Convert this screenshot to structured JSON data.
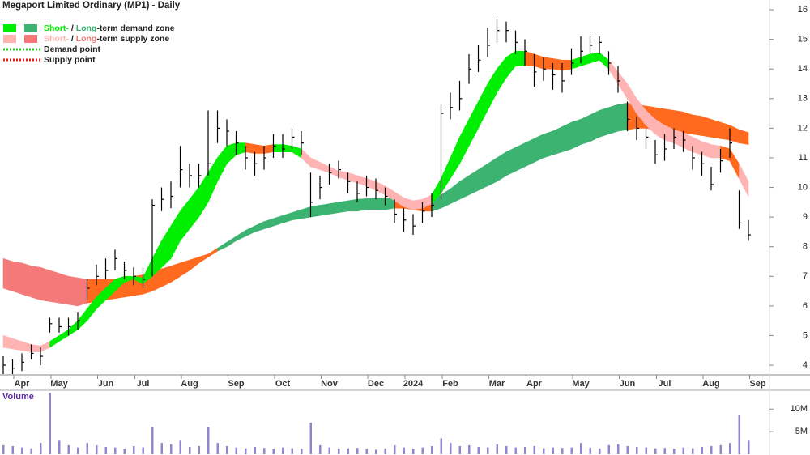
{
  "chart_data": {
    "type": "ohlc",
    "title": "Megaport Limited Ordinary (MP1) - Daily",
    "categories": [
      null,
      null,
      "Apr",
      null,
      null,
      null,
      "May",
      null,
      null,
      null,
      null,
      "Jun",
      null,
      null,
      null,
      "Jul",
      null,
      null,
      null,
      null,
      "Aug",
      null,
      null,
      null,
      null,
      "Sep",
      null,
      null,
      null,
      null,
      "Oct",
      null,
      null,
      null,
      null,
      "Nov",
      null,
      null,
      null,
      null,
      "Dec",
      null,
      null,
      null,
      "2024",
      null,
      null,
      null,
      "Feb",
      null,
      null,
      null,
      null,
      "Mar",
      null,
      null,
      null,
      "Apr",
      null,
      null,
      null,
      null,
      "May",
      null,
      null,
      null,
      null,
      "Jun",
      null,
      null,
      null,
      "Jul",
      null,
      null,
      null,
      null,
      "Aug",
      null,
      null,
      null,
      null,
      "Sep"
    ],
    "close": [
      4.0,
      3.9,
      4.1,
      4.4,
      4.3,
      5.4,
      5.3,
      5.3,
      5.5,
      6.6,
      7.0,
      7.2,
      7.6,
      7.2,
      7.0,
      6.9,
      9.4,
      9.6,
      9.7,
      10.6,
      10.4,
      10.4,
      10.8,
      12.0,
      11.9,
      11.5,
      11.0,
      10.8,
      11.0,
      11.4,
      11.3,
      11.7,
      11.5,
      9.5,
      10.0,
      10.5,
      10.6,
      10.2,
      9.8,
      10.0,
      9.9,
      9.7,
      9.1,
      8.9,
      8.7,
      9.2,
      9.4,
      12.5,
      12.7,
      13.0,
      14.0,
      14.3,
      14.8,
      15.3,
      15.3,
      14.9,
      14.6,
      13.9,
      14.0,
      13.8,
      13.6,
      14.2,
      14.6,
      14.8,
      14.9,
      14.2,
      13.6,
      12.3,
      12.0,
      11.7,
      11.1,
      11.3,
      11.7,
      11.6,
      11.0,
      10.8,
      10.1,
      10.9,
      11.5,
      8.8,
      8.4,
      null
    ],
    "high": [
      4.3,
      4.2,
      4.4,
      4.7,
      4.6,
      5.6,
      5.6,
      5.6,
      5.8,
      6.9,
      7.4,
      7.6,
      7.9,
      7.5,
      7.3,
      7.3,
      9.6,
      10.0,
      10.2,
      11.4,
      10.8,
      10.8,
      12.6,
      12.6,
      12.3,
      11.9,
      11.4,
      11.2,
      11.4,
      11.8,
      11.8,
      12.0,
      11.9,
      10.5,
      10.4,
      10.8,
      10.9,
      10.5,
      10.2,
      10.4,
      10.3,
      10.0,
      9.6,
      9.3,
      9.1,
      9.5,
      9.8,
      12.8,
      13.2,
      13.6,
      14.5,
      14.8,
      15.4,
      15.7,
      15.6,
      15.3,
      15.0,
      14.5,
      14.4,
      14.2,
      14.2,
      14.7,
      15.1,
      15.1,
      15.1,
      14.6,
      14.1,
      12.9,
      12.4,
      12.0,
      11.6,
      11.8,
      12.0,
      11.9,
      11.4,
      11.2,
      10.7,
      11.3,
      12.0,
      9.9,
      8.9,
      null
    ],
    "low": [
      3.7,
      3.7,
      3.8,
      4.2,
      4.0,
      5.1,
      5.1,
      5.0,
      5.2,
      6.2,
      6.7,
      6.9,
      7.2,
      6.9,
      6.7,
      6.6,
      7.0,
      9.2,
      9.3,
      10.0,
      10.0,
      10.0,
      10.4,
      11.5,
      11.4,
      11.1,
      10.6,
      10.4,
      10.6,
      11.0,
      11.0,
      11.3,
      11.1,
      9.0,
      9.6,
      10.1,
      10.3,
      9.8,
      9.5,
      9.7,
      9.6,
      9.4,
      8.8,
      8.5,
      8.4,
      8.8,
      9.0,
      9.6,
      12.3,
      12.6,
      13.5,
      13.9,
      14.4,
      14.9,
      14.9,
      14.5,
      14.1,
      13.4,
      13.6,
      13.3,
      13.2,
      13.8,
      14.2,
      14.5,
      14.5,
      13.8,
      13.2,
      11.9,
      11.6,
      11.3,
      10.8,
      10.9,
      11.3,
      11.2,
      10.6,
      10.4,
      9.9,
      10.5,
      11.0,
      8.6,
      8.2,
      null
    ],
    "color": "#000000",
    "ylim": [
      3.7,
      16.33
    ],
    "yticks": [
      4,
      5,
      6,
      7,
      8,
      9,
      10,
      11,
      12,
      13,
      14,
      15,
      16
    ],
    "long_term_zone": {
      "upper": [
        7.6,
        7.5,
        7.45,
        7.35,
        7.3,
        7.2,
        7.1,
        7.0,
        6.95,
        6.9,
        6.9,
        6.9,
        6.9,
        6.95,
        7.0,
        7.05,
        7.15,
        7.25,
        7.35,
        7.45,
        7.55,
        7.65,
        7.75,
        7.95,
        8.15,
        8.35,
        8.55,
        8.7,
        8.85,
        8.95,
        9.05,
        9.15,
        9.25,
        9.35,
        9.4,
        9.45,
        9.5,
        9.55,
        9.6,
        9.62,
        9.65,
        9.65,
        9.65,
        9.6,
        9.55,
        9.5,
        9.55,
        9.75,
        9.95,
        10.2,
        10.4,
        10.6,
        10.8,
        11.0,
        11.2,
        11.35,
        11.5,
        11.65,
        11.8,
        11.9,
        12.05,
        12.2,
        12.3,
        12.45,
        12.6,
        12.7,
        12.8,
        12.85,
        12.8,
        12.75,
        12.7,
        12.65,
        12.6,
        12.55,
        12.45,
        12.4,
        12.3,
        12.2,
        12.1,
        11.95,
        11.85,
        null
      ],
      "lower": [
        6.6,
        6.5,
        6.4,
        6.3,
        6.2,
        6.15,
        6.1,
        6.05,
        6.0,
        6.1,
        6.15,
        6.2,
        6.25,
        6.3,
        6.35,
        6.4,
        6.5,
        6.65,
        6.8,
        7.0,
        7.2,
        7.45,
        7.65,
        7.85,
        8.0,
        8.2,
        8.35,
        8.5,
        8.6,
        8.7,
        8.8,
        8.9,
        8.95,
        9.0,
        9.05,
        9.1,
        9.15,
        9.2,
        9.2,
        9.25,
        9.25,
        9.25,
        9.3,
        9.3,
        9.25,
        9.2,
        9.2,
        9.3,
        9.45,
        9.6,
        9.75,
        9.9,
        10.05,
        10.2,
        10.4,
        10.55,
        10.7,
        10.85,
        11.0,
        11.1,
        11.2,
        11.3,
        11.45,
        11.55,
        11.7,
        11.8,
        11.9,
        11.95,
        12.0,
        12.0,
        11.95,
        11.95,
        11.9,
        11.85,
        11.8,
        11.75,
        11.7,
        11.65,
        11.6,
        11.5,
        11.45,
        null
      ],
      "colors": [
        "#f47a7a",
        "#f47a7a",
        "#f47a7a",
        "#f47a7a",
        "#f47a7a",
        "#f47a7a",
        "#f47a7a",
        "#f47a7a",
        "#f47a7a",
        "#ff6a1f",
        "#ff6a1f",
        "#ff6a1f",
        "#ff6a1f",
        "#ff6a1f",
        "#ff6a1f",
        "#ff6a1f",
        "#ff6a1f",
        "#ff6a1f",
        "#ff6a1f",
        "#ff6a1f",
        "#ff6a1f",
        "#ff6a1f",
        "#ff6a1f",
        "#3cb371",
        "#3cb371",
        "#3cb371",
        "#3cb371",
        "#3cb371",
        "#3cb371",
        "#3cb371",
        "#3cb371",
        "#3cb371",
        "#3cb371",
        "#3cb371",
        "#3cb371",
        "#3cb371",
        "#3cb371",
        "#3cb371",
        "#3cb371",
        "#3cb371",
        "#3cb371",
        "#3cb371",
        "#ff6a1f",
        "#ff6a1f",
        "#ff6a1f",
        "#ff6a1f",
        "#3cb371",
        "#3cb371",
        "#3cb371",
        "#3cb371",
        "#3cb371",
        "#3cb371",
        "#3cb371",
        "#3cb371",
        "#3cb371",
        "#3cb371",
        "#3cb371",
        "#3cb371",
        "#3cb371",
        "#3cb371",
        "#3cb371",
        "#3cb371",
        "#3cb371",
        "#3cb371",
        "#3cb371",
        "#3cb371",
        "#3cb371",
        "#ff6a1f",
        "#ff6a1f",
        "#ff6a1f",
        "#ff6a1f",
        "#ff6a1f",
        "#ff6a1f",
        "#ff6a1f",
        "#ff6a1f",
        "#ff6a1f",
        "#ff6a1f",
        "#ff6a1f",
        "#ff6a1f",
        "#ff6a1f",
        "#ff6a1f",
        null
      ]
    },
    "short_term_zone": {
      "upper": [
        5.0,
        4.9,
        4.8,
        4.7,
        4.65,
        4.8,
        5.0,
        5.2,
        5.5,
        5.9,
        6.3,
        6.6,
        6.9,
        7.0,
        7.0,
        6.95,
        7.6,
        8.2,
        8.7,
        9.2,
        9.6,
        10.0,
        10.5,
        11.0,
        11.4,
        11.5,
        11.5,
        11.45,
        11.4,
        11.45,
        11.45,
        11.4,
        11.3,
        11.0,
        10.85,
        10.7,
        10.55,
        10.5,
        10.4,
        10.3,
        10.2,
        10.05,
        9.85,
        9.65,
        9.55,
        9.6,
        9.75,
        10.3,
        11.0,
        11.7,
        12.3,
        12.9,
        13.5,
        14.0,
        14.4,
        14.6,
        14.6,
        14.5,
        14.4,
        14.35,
        14.3,
        14.3,
        14.4,
        14.5,
        14.55,
        14.3,
        13.9,
        13.5,
        13.0,
        12.6,
        12.3,
        12.1,
        11.95,
        11.85,
        11.7,
        11.55,
        11.45,
        11.4,
        11.3,
        10.8,
        10.2,
        null
      ],
      "lower": [
        4.6,
        4.55,
        4.5,
        4.45,
        4.45,
        4.6,
        4.8,
        5.0,
        5.2,
        5.5,
        5.9,
        6.2,
        6.5,
        6.8,
        6.9,
        6.75,
        7.0,
        7.3,
        7.6,
        8.2,
        8.6,
        9.0,
        9.5,
        10.2,
        10.8,
        11.1,
        11.2,
        11.15,
        11.15,
        11.2,
        11.2,
        11.2,
        11.0,
        10.7,
        10.6,
        10.5,
        10.35,
        10.25,
        10.15,
        10.05,
        9.9,
        9.75,
        9.55,
        9.35,
        9.25,
        9.3,
        9.45,
        9.8,
        10.3,
        10.8,
        11.4,
        12.0,
        12.6,
        13.2,
        13.7,
        14.1,
        14.1,
        14.1,
        14.0,
        14.0,
        13.95,
        14.0,
        14.1,
        14.2,
        14.3,
        14.0,
        13.5,
        13.0,
        12.5,
        12.1,
        11.8,
        11.6,
        11.5,
        11.35,
        11.2,
        11.1,
        11.0,
        11.0,
        10.9,
        10.3,
        9.7,
        null
      ],
      "colors": [
        "#ffb3b3",
        "#ffb3b3",
        "#ffb3b3",
        "#ffb3b3",
        "#ffb3b3",
        "#00ee00",
        "#00ee00",
        "#00ee00",
        "#00ee00",
        "#00ee00",
        "#00ee00",
        "#00ee00",
        "#00ee00",
        "#00ee00",
        "#00ee00",
        "#00ee00",
        "#00ee00",
        "#00ee00",
        "#00ee00",
        "#00ee00",
        "#00ee00",
        "#00ee00",
        "#00ee00",
        "#00ee00",
        "#00ee00",
        "#00ee00",
        "#ff6a1f",
        "#ff6a1f",
        "#ff6a1f",
        "#00ee00",
        "#00ee00",
        "#00ee00",
        "#ffb3b3",
        "#ffb3b3",
        "#ffb3b3",
        "#ffb3b3",
        "#ffb3b3",
        "#ffb3b3",
        "#ffb3b3",
        "#ffb3b3",
        "#ffb3b3",
        "#ffb3b3",
        "#ffb3b3",
        "#ffb3b3",
        "#ffb3b3",
        "#ffb3b3",
        "#00ee00",
        "#00ee00",
        "#00ee00",
        "#00ee00",
        "#00ee00",
        "#00ee00",
        "#00ee00",
        "#00ee00",
        "#00ee00",
        "#00ee00",
        "#ff6a1f",
        "#ff6a1f",
        "#ff6a1f",
        "#ff6a1f",
        "#ff6a1f",
        "#00ee00",
        "#00ee00",
        "#00ee00",
        "#00ee00",
        "#ffb3b3",
        "#ffb3b3",
        "#ffb3b3",
        "#ffb3b3",
        "#ffb3b3",
        "#ffb3b3",
        "#ffb3b3",
        "#ffb3b3",
        "#ffb3b3",
        "#ffb3b3",
        "#ffb3b3",
        "#ffb3b3",
        "#ff6a1f",
        "#ff6a1f",
        "#ffb3b3",
        "#ffb3b3",
        null
      ]
    },
    "legend": [
      {
        "short": "Short-",
        "sep": " / ",
        "long": "Long",
        "rest": "-term demand zone",
        "colors": [
          "#00ee00",
          "#3cb371"
        ]
      },
      {
        "short": "Short-",
        "sep": " / ",
        "long": "Long",
        "rest": "-term supply zone",
        "colors": [
          "#ffb3b3",
          "#f47a7a"
        ]
      },
      {
        "label": "Demand point",
        "color": "#22cc22"
      },
      {
        "label": "Supply point",
        "color": "#dd2222"
      }
    ],
    "volume": {
      "label": "Volume",
      "color": "#8f86d0",
      "values": [
        2.0,
        1.8,
        1.5,
        1.3,
        2.5,
        13.6,
        3.0,
        2.0,
        1.5,
        2.5,
        2.0,
        1.6,
        1.5,
        1.2,
        1.8,
        1.5,
        6.0,
        2.5,
        2.2,
        3.0,
        1.6,
        1.8,
        6.0,
        2.5,
        1.8,
        1.5,
        1.3,
        1.6,
        1.4,
        1.2,
        1.5,
        1.3,
        1.2,
        7.0,
        2.0,
        1.5,
        1.2,
        1.3,
        1.4,
        1.2,
        1.0,
        1.3,
        2.0,
        1.5,
        1.2,
        1.5,
        1.8,
        3.5,
        2.5,
        1.8,
        2.0,
        1.6,
        1.5,
        2.2,
        1.8,
        1.5,
        1.6,
        1.8,
        1.3,
        1.5,
        1.4,
        1.5,
        2.5,
        1.4,
        1.3,
        2.0,
        2.2,
        1.8,
        1.6,
        1.5,
        1.3,
        1.4,
        1.2,
        1.5,
        1.3,
        1.6,
        1.8,
        2.0,
        2.5,
        8.8,
        3.0,
        null
      ],
      "ylim": [
        0,
        14
      ],
      "yticks": [
        {
          "value": 10,
          "label": "10M"
        },
        {
          "value": 5,
          "label": "5M"
        }
      ]
    }
  }
}
